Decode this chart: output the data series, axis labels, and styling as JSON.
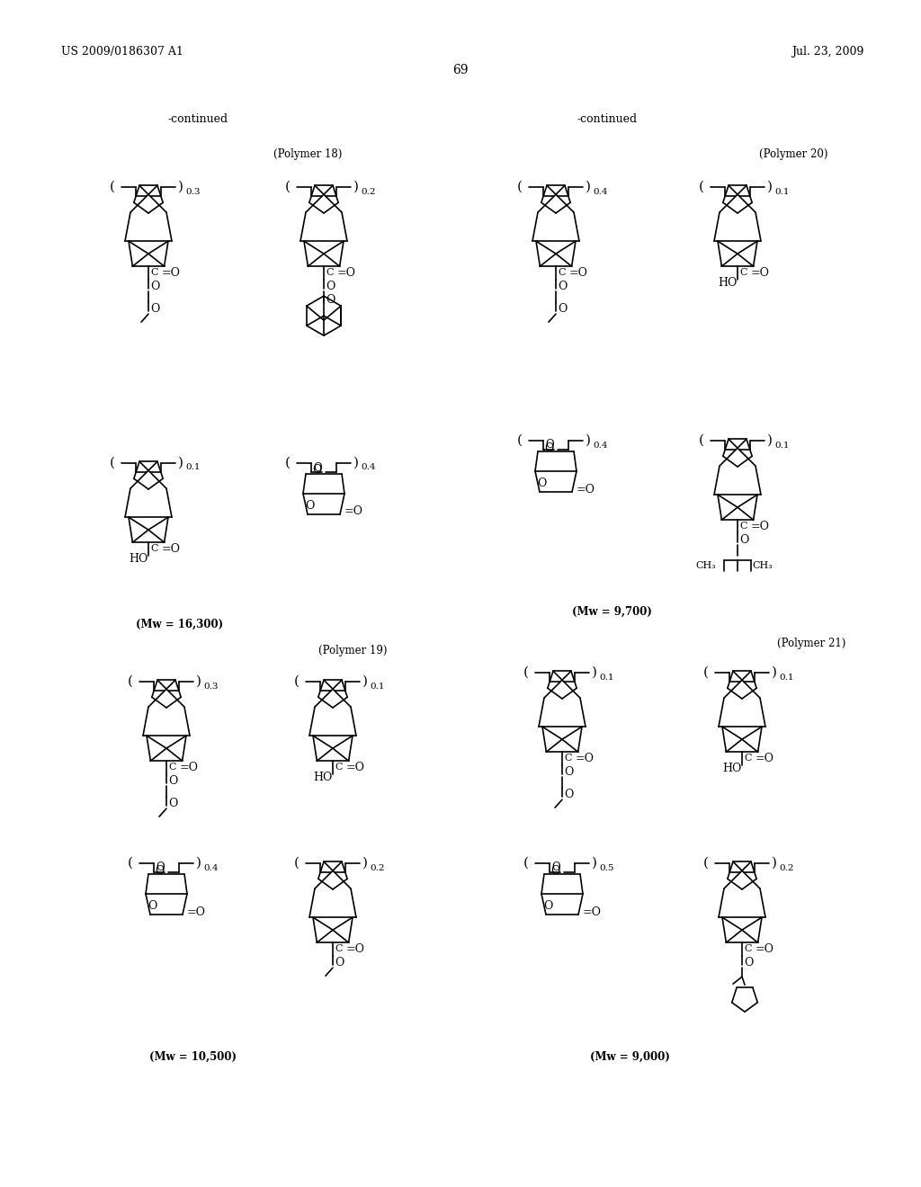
{
  "bg_color": "#ffffff",
  "header_left": "US 2009/0186307 A1",
  "header_right": "Jul. 23, 2009",
  "page_number": "69",
  "continued_left": "-continued",
  "continued_right": "-continued",
  "polymer18_label": "(Polymer 18)",
  "polymer19_label": "(Polymer 19)",
  "polymer20_label": "(Polymer 20)",
  "polymer21_label": "(Polymer 21)",
  "mw18": "(Mw = 16,300)",
  "mw19": "(Mw = 10,500)",
  "mw20": "(Mw = 9,700)",
  "mw21": "(Mw = 9,000)"
}
